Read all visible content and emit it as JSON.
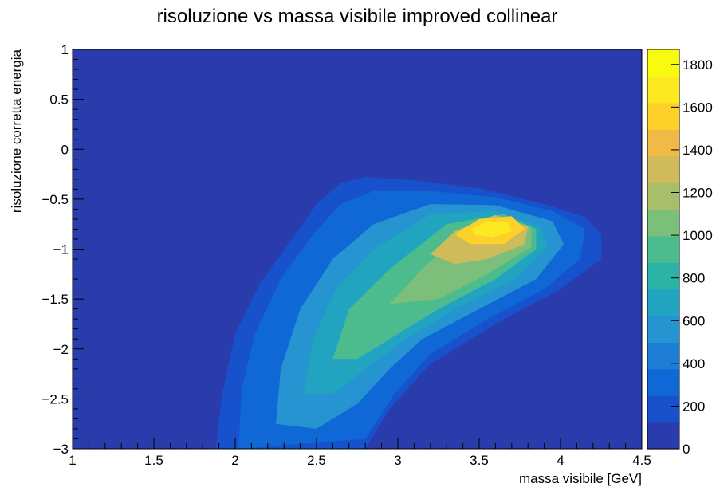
{
  "chart_data": {
    "type": "heatmap",
    "title": "risoluzione vs massa visibile improved collinear",
    "xlabel": "massa visibile [GeV]",
    "ylabel": "risoluzione corretta energia",
    "xlim": [
      1,
      4.5
    ],
    "ylim": [
      -3,
      1
    ],
    "zlim": [
      0,
      1870
    ],
    "x_ticks": [
      "1",
      "1.5",
      "2",
      "2.5",
      "3",
      "3.5",
      "4",
      "4.5"
    ],
    "y_ticks": [
      "1",
      "0.5",
      "0",
      "−0.5",
      "−1",
      "−1.5",
      "−2",
      "−2.5",
      "−3"
    ],
    "z_ticks": [
      "0",
      "200",
      "400",
      "600",
      "800",
      "1000",
      "1200",
      "1400",
      "1600",
      "1800"
    ],
    "grid": false,
    "palette": [
      "#2a3cab",
      "#1752cc",
      "#0f68d6",
      "#1e7ed6",
      "#2694d0",
      "#21a4bf",
      "#2bb4a6",
      "#4cbc8f",
      "#7cbf7a",
      "#a9be69",
      "#cfbb5a",
      "#f0ba45",
      "#fdd02a",
      "#fce922",
      "#f9fb0e"
    ],
    "regions": [
      {
        "level": 150,
        "polygon": [
          [
            1.88,
            -3
          ],
          [
            1.92,
            -2.45
          ],
          [
            2.0,
            -1.85
          ],
          [
            2.15,
            -1.35
          ],
          [
            2.35,
            -0.9
          ],
          [
            2.5,
            -0.55
          ],
          [
            2.65,
            -0.34
          ],
          [
            2.8,
            -0.28
          ],
          [
            3.1,
            -0.31
          ],
          [
            3.5,
            -0.39
          ],
          [
            3.9,
            -0.55
          ],
          [
            4.15,
            -0.68
          ],
          [
            4.25,
            -0.85
          ],
          [
            4.25,
            -1.1
          ],
          [
            4.0,
            -1.4
          ],
          [
            3.6,
            -1.75
          ],
          [
            3.2,
            -2.15
          ],
          [
            2.95,
            -2.6
          ],
          [
            2.8,
            -3
          ]
        ]
      },
      {
        "level": 300,
        "polygon": [
          [
            2.02,
            -3
          ],
          [
            2.04,
            -2.4
          ],
          [
            2.12,
            -1.85
          ],
          [
            2.28,
            -1.3
          ],
          [
            2.48,
            -0.85
          ],
          [
            2.65,
            -0.55
          ],
          [
            2.85,
            -0.42
          ],
          [
            3.2,
            -0.42
          ],
          [
            3.6,
            -0.48
          ],
          [
            3.95,
            -0.62
          ],
          [
            4.15,
            -0.8
          ],
          [
            4.12,
            -1.1
          ],
          [
            3.9,
            -1.4
          ],
          [
            3.55,
            -1.7
          ],
          [
            3.2,
            -2.05
          ],
          [
            2.98,
            -2.45
          ],
          [
            2.8,
            -2.9
          ]
        ]
      },
      {
        "level": 500,
        "polygon": [
          [
            2.25,
            -2.75
          ],
          [
            2.28,
            -2.2
          ],
          [
            2.4,
            -1.6
          ],
          [
            2.6,
            -1.1
          ],
          [
            2.85,
            -0.75
          ],
          [
            3.2,
            -0.55
          ],
          [
            3.6,
            -0.56
          ],
          [
            3.95,
            -0.72
          ],
          [
            4.02,
            -0.95
          ],
          [
            3.85,
            -1.3
          ],
          [
            3.5,
            -1.6
          ],
          [
            3.15,
            -1.9
          ],
          [
            2.95,
            -2.2
          ],
          [
            2.75,
            -2.55
          ],
          [
            2.5,
            -2.8
          ]
        ]
      },
      {
        "level": 700,
        "polygon": [
          [
            2.42,
            -2.45
          ],
          [
            2.48,
            -1.9
          ],
          [
            2.62,
            -1.4
          ],
          [
            2.85,
            -1.0
          ],
          [
            3.2,
            -0.65
          ],
          [
            3.6,
            -0.62
          ],
          [
            3.88,
            -0.78
          ],
          [
            3.92,
            -0.98
          ],
          [
            3.72,
            -1.3
          ],
          [
            3.35,
            -1.6
          ],
          [
            3.05,
            -1.9
          ],
          [
            2.8,
            -2.2
          ],
          [
            2.6,
            -2.45
          ]
        ]
      },
      {
        "level": 900,
        "polygon": [
          [
            2.6,
            -2.1
          ],
          [
            2.7,
            -1.6
          ],
          [
            2.95,
            -1.2
          ],
          [
            3.3,
            -0.75
          ],
          [
            3.65,
            -0.65
          ],
          [
            3.85,
            -0.8
          ],
          [
            3.85,
            -1.0
          ],
          [
            3.6,
            -1.3
          ],
          [
            3.25,
            -1.6
          ],
          [
            2.95,
            -1.9
          ],
          [
            2.75,
            -2.1
          ]
        ]
      },
      {
        "level": 1100,
        "polygon": [
          [
            2.95,
            -1.55
          ],
          [
            3.15,
            -1.2
          ],
          [
            3.35,
            -0.9
          ],
          [
            3.6,
            -0.68
          ],
          [
            3.82,
            -0.78
          ],
          [
            3.82,
            -0.98
          ],
          [
            3.55,
            -1.25
          ],
          [
            3.25,
            -1.5
          ]
        ]
      },
      {
        "level": 1300,
        "polygon": [
          [
            3.2,
            -1.05
          ],
          [
            3.35,
            -0.82
          ],
          [
            3.6,
            -0.66
          ],
          [
            3.8,
            -0.77
          ],
          [
            3.78,
            -0.95
          ],
          [
            3.55,
            -1.1
          ],
          [
            3.35,
            -1.15
          ]
        ]
      },
      {
        "level": 1500,
        "polygon": [
          [
            3.35,
            -0.85
          ],
          [
            3.5,
            -0.7
          ],
          [
            3.7,
            -0.67
          ],
          [
            3.78,
            -0.8
          ],
          [
            3.65,
            -0.95
          ],
          [
            3.45,
            -0.95
          ]
        ]
      },
      {
        "level": 1650,
        "polygon": [
          [
            3.45,
            -0.8
          ],
          [
            3.55,
            -0.72
          ],
          [
            3.68,
            -0.73
          ],
          [
            3.7,
            -0.82
          ],
          [
            3.58,
            -0.88
          ],
          [
            3.48,
            -0.86
          ]
        ]
      }
    ]
  }
}
